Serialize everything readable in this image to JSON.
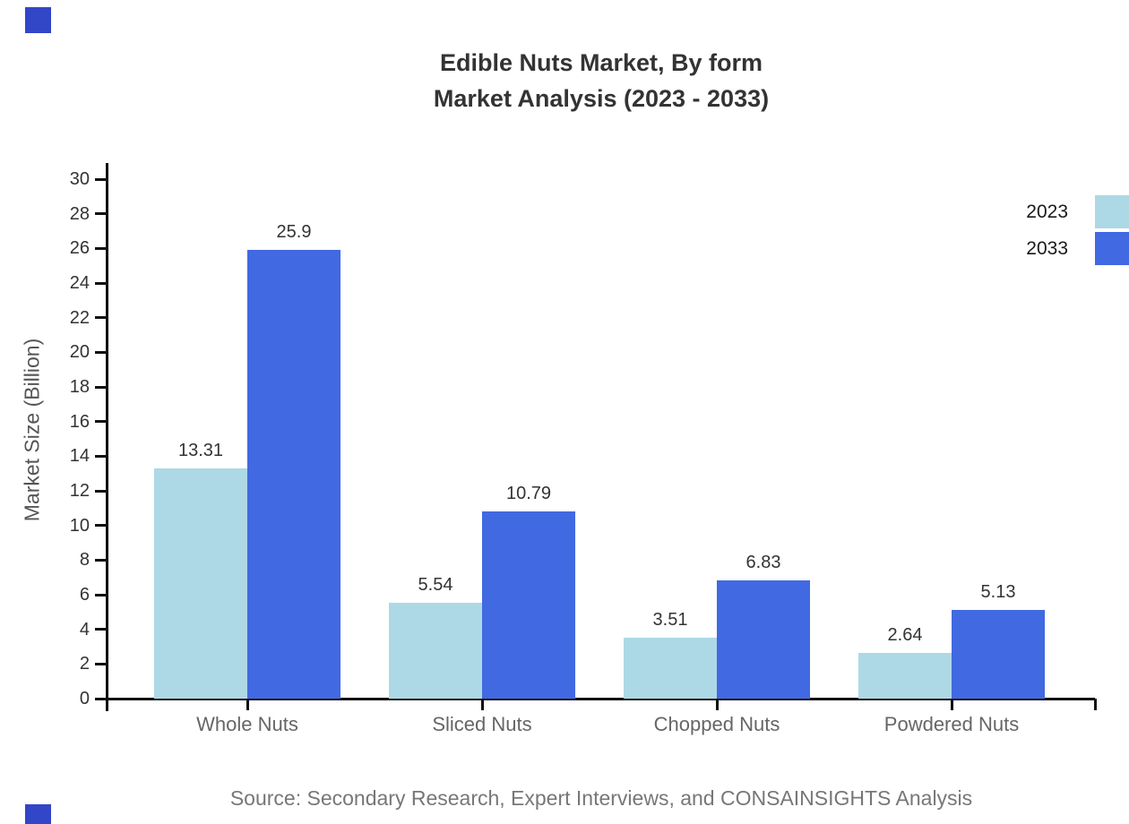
{
  "title": {
    "line1": "Edible Nuts Market, By form",
    "line2": "Market Analysis (2023 - 2033)"
  },
  "source_note": "Source: Secondary Research, Expert Interviews, and CONSAINSIGHTS Analysis",
  "colors": {
    "series_2023": "#ADD8E6",
    "series_2033": "#4169E1",
    "axis": "#111111",
    "title_text": "#333333",
    "tick_text": "#333333",
    "category_text": "#666666",
    "source_text": "#777777",
    "corner_decoration": "#3246C8"
  },
  "chart_data": {
    "type": "bar",
    "title": "Edible Nuts Market, By form\nMarket Analysis (2023 - 2033)",
    "categories": [
      "Whole Nuts",
      "Sliced Nuts",
      "Chopped Nuts",
      "Powdered Nuts"
    ],
    "series": [
      {
        "name": "2023",
        "color": "#ADD8E6",
        "values": [
          13.31,
          5.54,
          3.51,
          2.64
        ]
      },
      {
        "name": "2033",
        "color": "#4169E1",
        "values": [
          25.9,
          10.79,
          6.83,
          5.13
        ]
      }
    ],
    "xlabel": "",
    "ylabel": "Market Size (Billion)",
    "ylim": [
      0,
      30
    ],
    "ytick_step": 2,
    "grid": false,
    "value_labels": true,
    "legend_position": "top-right"
  }
}
